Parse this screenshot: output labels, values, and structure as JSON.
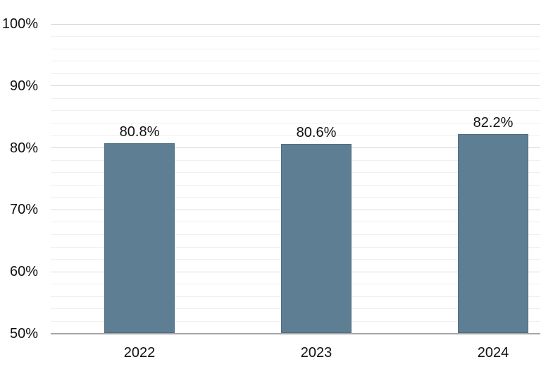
{
  "chart_data": {
    "type": "bar",
    "title": "",
    "categories": [
      "2022",
      "2023",
      "2024"
    ],
    "values": [
      80.8,
      80.6,
      82.2
    ],
    "value_labels": [
      "80.8%",
      "80.6%",
      "82.2%"
    ],
    "ylim": [
      50,
      100
    ],
    "y_major_tick_values": [
      50,
      60,
      70,
      80,
      90,
      100
    ],
    "y_major_tick_labels": [
      "50%",
      "60%",
      "70%",
      "80%",
      "90%",
      "100%"
    ],
    "y_minor_step": 2,
    "grid": "horizontal",
    "legend": "none",
    "colors": {
      "bar_fill": "#5d7e93",
      "bar_border": "#4d6e83",
      "gridline_minor": "#efefef",
      "gridline_major": "#d8d8d8",
      "axis_line": "#a6a6a6",
      "label_text": "#111111"
    }
  }
}
